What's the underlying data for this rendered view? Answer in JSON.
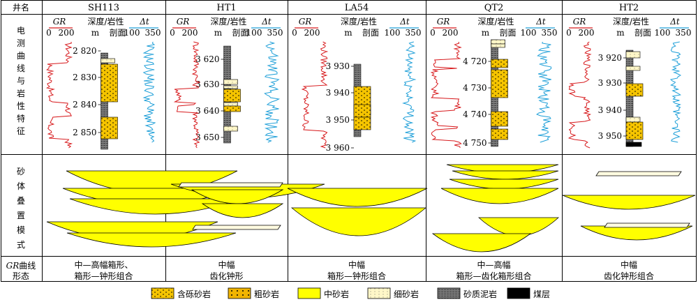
{
  "table": {
    "col_header": "井名",
    "row_labels": [
      "电测曲线与岩性特征",
      "砂体叠置模式",
      "GR曲线形态"
    ],
    "row3_label": {
      "italic": "GR",
      "rest1": "曲线",
      "rest2": "形态"
    }
  },
  "curve_labels": {
    "gr": "GR",
    "gr_scale_min": "0",
    "gr_scale_max": "200",
    "dt": "Δt",
    "dt_scale_min": "100",
    "dt_scale_max": "350",
    "depth_line1": "深度/岩性",
    "depth_line2_m": "m",
    "depth_line2_rest": "剖面"
  },
  "colors": {
    "gr": "#d7191c",
    "dt": "#1e9fd8",
    "sand": "#f5c400",
    "lens": "#ffff00",
    "shale": "#808080"
  },
  "wells": [
    {
      "name": "SH113",
      "depth_ticks": [
        "2 820",
        "2 830",
        "2 840",
        "2 850"
      ],
      "mode_line1": "中—高幅箱形、",
      "mode_line2": "箱形—钟形组合"
    },
    {
      "name": "HT1",
      "depth_ticks": [
        "3 620",
        "3 630",
        "3 640",
        "3 650"
      ],
      "mode_line1": "中幅",
      "mode_line2": "齿化钟形"
    },
    {
      "name": "LA54",
      "depth_ticks": [
        "3 930",
        "3 940",
        "3 950",
        "3 960"
      ],
      "mode_line1": "中幅",
      "mode_line2": "箱形—钟形组合"
    },
    {
      "name": "QT2",
      "depth_ticks": [
        "4 720",
        "4 730",
        "4 740",
        "4 750"
      ],
      "mode_line1": "中—高幅",
      "mode_line2": "箱形—齿化箱形组合"
    },
    {
      "name": "HT2",
      "depth_ticks": [
        "3 920",
        "3 930",
        "3 940",
        "3 950"
      ],
      "mode_line1": "中幅",
      "mode_line2": "齿化钟形组合"
    }
  ],
  "legend": [
    {
      "label": "含砾砂岩",
      "pattern": "pebbly"
    },
    {
      "label": "粗砂岩",
      "pattern": "coarse"
    },
    {
      "label": "中砂岩",
      "pattern": "medium"
    },
    {
      "label": "细砂岩",
      "pattern": "fine"
    },
    {
      "label": "砂质泥岩",
      "pattern": "mudstone"
    },
    {
      "label": "煤层",
      "pattern": "coal"
    }
  ]
}
